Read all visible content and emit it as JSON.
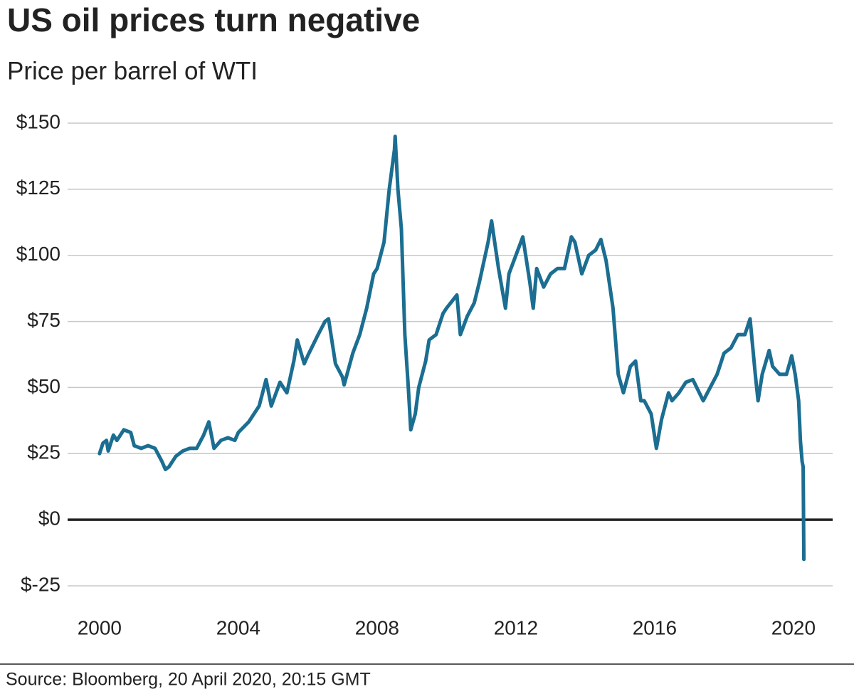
{
  "chart_data": {
    "type": "line",
    "title": "US oil prices turn negative",
    "subtitle": "Price per barrel of WTI",
    "source": "Source: Bloomberg, 20 April 2020, 20:15 GMT",
    "color": "#1b6e91",
    "grid": true,
    "xlim": [
      1999.08,
      2021.13
    ],
    "xticks": [
      2000,
      2004,
      2008,
      2012,
      2016,
      2020
    ],
    "ylim": [
      -25,
      150
    ],
    "yticks": [
      {
        "value": -25,
        "label": "$-25"
      },
      {
        "value": 0,
        "label": "$0"
      },
      {
        "value": 25,
        "label": "$25"
      },
      {
        "value": 50,
        "label": "$50"
      },
      {
        "value": 75,
        "label": "$75"
      },
      {
        "value": 100,
        "label": "$100"
      },
      {
        "value": 125,
        "label": "$125"
      },
      {
        "value": 150,
        "label": "$150"
      }
    ],
    "x": [
      2000.0,
      2000.1,
      2000.2,
      2000.25,
      2000.4,
      2000.5,
      2000.7,
      2000.9,
      2001.0,
      2001.2,
      2001.4,
      2001.6,
      2001.8,
      2001.9,
      2002.0,
      2002.2,
      2002.4,
      2002.6,
      2002.8,
      2003.0,
      2003.15,
      2003.3,
      2003.5,
      2003.7,
      2003.9,
      2004.0,
      2004.3,
      2004.6,
      2004.8,
      2004.95,
      2005.2,
      2005.4,
      2005.6,
      2005.7,
      2005.9,
      2006.0,
      2006.3,
      2006.5,
      2006.6,
      2006.8,
      2007.0,
      2007.05,
      2007.3,
      2007.5,
      2007.7,
      2007.9,
      2008.0,
      2008.2,
      2008.35,
      2008.5,
      2008.52,
      2008.6,
      2008.7,
      2008.8,
      2008.9,
      2008.97,
      2009.1,
      2009.2,
      2009.4,
      2009.5,
      2009.7,
      2009.9,
      2010.0,
      2010.3,
      2010.4,
      2010.6,
      2010.8,
      2010.95,
      2011.2,
      2011.3,
      2011.5,
      2011.7,
      2011.8,
      2012.0,
      2012.2,
      2012.4,
      2012.5,
      2012.6,
      2012.8,
      2013.0,
      2013.2,
      2013.4,
      2013.6,
      2013.7,
      2013.9,
      2014.1,
      2014.3,
      2014.45,
      2014.6,
      2014.8,
      2014.95,
      2015.1,
      2015.3,
      2015.45,
      2015.6,
      2015.7,
      2015.9,
      2016.05,
      2016.2,
      2016.4,
      2016.5,
      2016.7,
      2016.9,
      2017.1,
      2017.4,
      2017.6,
      2017.8,
      2018.0,
      2018.2,
      2018.4,
      2018.6,
      2018.75,
      2018.9,
      2018.98,
      2019.1,
      2019.3,
      2019.4,
      2019.6,
      2019.8,
      2019.95,
      2020.05,
      2020.15,
      2020.2,
      2020.25,
      2020.28,
      2020.3
    ],
    "values": [
      25,
      29,
      30,
      26,
      32,
      30,
      34,
      33,
      28,
      27,
      28,
      27,
      22,
      19,
      20,
      24,
      26,
      27,
      27,
      32,
      37,
      27,
      30,
      31,
      30,
      33,
      37,
      43,
      53,
      43,
      52,
      48,
      60,
      68,
      59,
      62,
      70,
      75,
      76,
      59,
      54,
      51,
      63,
      70,
      80,
      93,
      95,
      105,
      125,
      140,
      145,
      125,
      110,
      70,
      50,
      34,
      40,
      50,
      60,
      68,
      70,
      78,
      80,
      85,
      70,
      77,
      82,
      90,
      105,
      113,
      95,
      80,
      93,
      100,
      107,
      90,
      80,
      95,
      88,
      93,
      95,
      95,
      107,
      105,
      93,
      100,
      102,
      106,
      98,
      80,
      55,
      48,
      58,
      60,
      45,
      45,
      40,
      27,
      38,
      48,
      45,
      48,
      52,
      53,
      45,
      50,
      55,
      63,
      65,
      70,
      70,
      76,
      55,
      45,
      55,
      64,
      58,
      55,
      55,
      62,
      55,
      45,
      30,
      22,
      20,
      -15
    ]
  }
}
